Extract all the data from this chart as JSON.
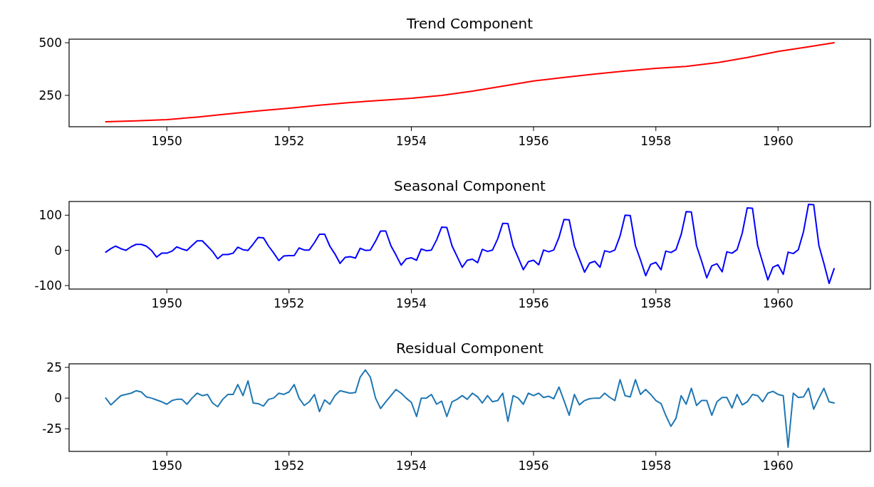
{
  "chart_data": [
    {
      "type": "line",
      "title": "Trend Component",
      "x": [
        "1949-01",
        "1949-07",
        "1950-01",
        "1950-07",
        "1951-01",
        "1951-07",
        "1952-01",
        "1952-07",
        "1953-01",
        "1953-07",
        "1954-01",
        "1954-07",
        "1955-01",
        "1955-07",
        "1956-01",
        "1956-07",
        "1957-01",
        "1957-07",
        "1958-01",
        "1958-07",
        "1959-01",
        "1959-07",
        "1960-01",
        "1960-07",
        "1960-12"
      ],
      "xlim": [
        "1948-05-27",
        "1961-07-06"
      ],
      "xticks": [
        "1950",
        "1952",
        "1954",
        "1956",
        "1958",
        "1960"
      ],
      "ylim": [
        101,
        517
      ],
      "yticks": [
        250,
        500
      ],
      "series": [
        {
          "color": "#ff0000",
          "values": [
            125,
            129,
            135,
            147,
            162,
            176,
            189,
            203,
            216,
            226,
            236,
            250,
            270,
            294,
            318,
            335,
            351,
            366,
            378,
            388,
            405,
            430,
            459,
            481,
            500
          ]
        }
      ]
    },
    {
      "type": "line",
      "title": "Seasonal Component",
      "x": [
        "1949-01",
        "1949-02",
        "1949-03",
        "1949-04",
        "1949-05",
        "1949-06",
        "1949-07",
        "1949-08",
        "1949-09",
        "1949-10",
        "1949-11",
        "1949-12",
        "1950-01",
        "1950-02",
        "1950-03",
        "1950-04",
        "1950-05",
        "1950-06",
        "1950-07",
        "1950-08",
        "1950-09",
        "1950-10",
        "1950-11",
        "1950-12",
        "1951-01",
        "1951-02",
        "1951-03",
        "1951-04",
        "1951-05",
        "1951-06",
        "1951-07",
        "1951-08",
        "1951-09",
        "1951-10",
        "1951-11",
        "1951-12",
        "1952-01",
        "1952-02",
        "1952-03",
        "1952-04",
        "1952-05",
        "1952-06",
        "1952-07",
        "1952-08",
        "1952-09",
        "1952-10",
        "1952-11",
        "1952-12",
        "1953-01",
        "1953-02",
        "1953-03",
        "1953-04",
        "1953-05",
        "1953-06",
        "1953-07",
        "1953-08",
        "1953-09",
        "1953-10",
        "1953-11",
        "1953-12",
        "1954-01",
        "1954-02",
        "1954-03",
        "1954-04",
        "1954-05",
        "1954-06",
        "1954-07",
        "1954-08",
        "1954-09",
        "1954-10",
        "1954-11",
        "1954-12",
        "1955-01",
        "1955-02",
        "1955-03",
        "1955-04",
        "1955-05",
        "1955-06",
        "1955-07",
        "1955-08",
        "1955-09",
        "1955-10",
        "1955-11",
        "1955-12",
        "1956-01",
        "1956-02",
        "1956-03",
        "1956-04",
        "1956-05",
        "1956-06",
        "1956-07",
        "1956-08",
        "1956-09",
        "1956-10",
        "1956-11",
        "1956-12",
        "1957-01",
        "1957-02",
        "1957-03",
        "1957-04",
        "1957-05",
        "1957-06",
        "1957-07",
        "1957-08",
        "1957-09",
        "1957-10",
        "1957-11",
        "1957-12",
        "1958-01",
        "1958-02",
        "1958-03",
        "1958-04",
        "1958-05",
        "1958-06",
        "1958-07",
        "1958-08",
        "1958-09",
        "1958-10",
        "1958-11",
        "1958-12",
        "1959-01",
        "1959-02",
        "1959-03",
        "1959-04",
        "1959-05",
        "1959-06",
        "1959-07",
        "1959-08",
        "1959-09",
        "1959-10",
        "1959-11",
        "1959-12",
        "1960-01",
        "1960-02",
        "1960-03",
        "1960-04",
        "1960-05",
        "1960-06",
        "1960-07",
        "1960-08",
        "1960-09",
        "1960-10",
        "1960-11",
        "1960-12"
      ],
      "xlim": [
        "1948-05-27",
        "1961-07-06"
      ],
      "xticks": [
        "1950",
        "1952",
        "1954",
        "1956",
        "1958",
        "1960"
      ],
      "ylim": [
        -110,
        139
      ],
      "yticks": [
        -100,
        0,
        100
      ],
      "series": [
        {
          "color": "#0000ff",
          "values": [
            -5,
            5,
            12,
            5,
            0,
            10,
            17,
            17,
            12,
            0,
            -19,
            -8,
            -8,
            -2,
            10,
            4,
            0,
            14,
            27,
            27,
            12,
            -3,
            -24,
            -12,
            -12,
            -8,
            9,
            2,
            0,
            18,
            37,
            36,
            12,
            -7,
            -29,
            -16,
            -15,
            -15,
            7,
            1,
            1,
            22,
            46,
            46,
            12,
            -10,
            -37,
            -20,
            -18,
            -22,
            6,
            0,
            1,
            26,
            55,
            55,
            13,
            -13,
            -42,
            -24,
            -21,
            -28,
            4,
            -1,
            1,
            30,
            66,
            65,
            13,
            -17,
            -48,
            -28,
            -25,
            -35,
            3,
            -3,
            1,
            33,
            77,
            76,
            13,
            -20,
            -55,
            -32,
            -28,
            -41,
            1,
            -4,
            1,
            37,
            88,
            87,
            13,
            -24,
            -62,
            -36,
            -31,
            -48,
            -1,
            -5,
            1,
            41,
            100,
            99,
            13,
            -27,
            -72,
            -40,
            -34,
            -55,
            -2,
            -6,
            2,
            45,
            110,
            109,
            13,
            -30,
            -78,
            -44,
            -38,
            -61,
            -4,
            -8,
            2,
            49,
            121,
            120,
            14,
            -34,
            -84,
            -48,
            -41,
            -68,
            -5,
            -9,
            2,
            53,
            131,
            130,
            14,
            -37,
            -94,
            -52
          ]
        }
      ]
    },
    {
      "type": "line",
      "title": "Residual Component",
      "x": [
        "1949-01",
        "1949-02",
        "1949-03",
        "1949-04",
        "1949-05",
        "1949-06",
        "1949-07",
        "1949-08",
        "1949-09",
        "1949-10",
        "1949-11",
        "1949-12",
        "1950-01",
        "1950-02",
        "1950-03",
        "1950-04",
        "1950-05",
        "1950-06",
        "1950-07",
        "1950-08",
        "1950-09",
        "1950-10",
        "1950-11",
        "1950-12",
        "1951-01",
        "1951-02",
        "1951-03",
        "1951-04",
        "1951-05",
        "1951-06",
        "1951-07",
        "1951-08",
        "1951-09",
        "1951-10",
        "1951-11",
        "1951-12",
        "1952-01",
        "1952-02",
        "1952-03",
        "1952-04",
        "1952-05",
        "1952-06",
        "1952-07",
        "1952-08",
        "1952-09",
        "1952-10",
        "1952-11",
        "1952-12",
        "1953-01",
        "1953-02",
        "1953-03",
        "1953-04",
        "1953-05",
        "1953-06",
        "1953-07",
        "1953-08",
        "1953-09",
        "1953-10",
        "1953-11",
        "1953-12",
        "1954-01",
        "1954-02",
        "1954-03",
        "1954-04",
        "1954-05",
        "1954-06",
        "1954-07",
        "1954-08",
        "1954-09",
        "1954-10",
        "1954-11",
        "1954-12",
        "1955-01",
        "1955-02",
        "1955-03",
        "1955-04",
        "1955-05",
        "1955-06",
        "1955-07",
        "1955-08",
        "1955-09",
        "1955-10",
        "1955-11",
        "1955-12",
        "1956-01",
        "1956-02",
        "1956-03",
        "1956-04",
        "1956-05",
        "1956-06",
        "1956-07",
        "1956-08",
        "1956-09",
        "1956-10",
        "1956-11",
        "1956-12",
        "1957-01",
        "1957-02",
        "1957-03",
        "1957-04",
        "1957-05",
        "1957-06",
        "1957-07",
        "1957-08",
        "1957-09",
        "1957-10",
        "1957-11",
        "1957-12",
        "1958-01",
        "1958-02",
        "1958-03",
        "1958-04",
        "1958-05",
        "1958-06",
        "1958-07",
        "1958-08",
        "1958-09",
        "1958-10",
        "1958-11",
        "1958-12",
        "1959-01",
        "1959-02",
        "1959-03",
        "1959-04",
        "1959-05",
        "1959-06",
        "1959-07",
        "1959-08",
        "1959-09",
        "1959-10",
        "1959-11",
        "1959-12",
        "1960-01",
        "1960-02",
        "1960-03",
        "1960-04",
        "1960-05",
        "1960-06",
        "1960-07",
        "1960-08",
        "1960-09",
        "1960-10",
        "1960-11",
        "1960-12"
      ],
      "xlim": [
        "1948-05-27",
        "1961-07-06"
      ],
      "xticks": [
        "1950",
        "1952",
        "1954",
        "1956",
        "1958",
        "1960"
      ],
      "ylim": [
        -43.4,
        27.9
      ],
      "yticks": [
        -25,
        0,
        25
      ],
      "series": [
        {
          "color": "#1f77b4",
          "values": [
            0,
            -5.5,
            -2,
            2,
            3,
            4,
            6,
            5,
            1,
            0,
            -1.5,
            -3,
            -5,
            -2,
            -1,
            -1,
            -5,
            0,
            4,
            2,
            3,
            -4,
            -7,
            -1,
            3,
            3,
            11,
            2,
            14,
            -4,
            -4.5,
            -6.5,
            -1,
            0,
            4,
            3,
            5,
            11,
            0,
            -6,
            -3,
            3,
            -11,
            -1.5,
            -5,
            2,
            6,
            5,
            4,
            4.5,
            17,
            23,
            17,
            0,
            -8.5,
            -3,
            2,
            7,
            4,
            0,
            -3.5,
            -15,
            0,
            0,
            3,
            -5,
            -2.5,
            -15,
            -3,
            -1,
            2,
            -1,
            4,
            1,
            -4,
            2,
            -3,
            -2,
            4,
            -19,
            2,
            0,
            -5,
            4,
            2,
            4,
            0.5,
            1.5,
            -0.5,
            9,
            -2,
            -14,
            3,
            -5.5,
            -2,
            -0.5,
            0,
            0,
            4,
            0.5,
            -2,
            15,
            2,
            1,
            15,
            3,
            7,
            3,
            -2,
            -4.5,
            -14,
            -23,
            -16.5,
            2,
            -5,
            8,
            -6,
            -2,
            -2,
            -14,
            -3,
            0.5,
            0.5,
            -8,
            3,
            -5.5,
            -3,
            3,
            2,
            -3,
            4,
            5.5,
            3,
            2,
            -40,
            4,
            0.5,
            1,
            8,
            -9,
            0,
            8,
            -3,
            -4
          ]
        }
      ]
    }
  ]
}
